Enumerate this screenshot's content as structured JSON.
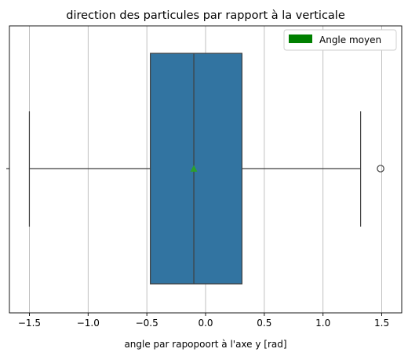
{
  "chart_data": {
    "type": "box",
    "title": "direction des particules par rapport à la verticale",
    "xlabel": "angle par rapopoort à l'axe y [rad]",
    "ylabel": "",
    "xlim": [
      -1.67,
      1.67
    ],
    "xticks": [
      -1.5,
      -1.0,
      -0.5,
      0.0,
      0.5,
      1.0,
      1.5
    ],
    "xtick_labels": [
      "−1.5",
      "−1.0",
      "−0.5",
      "0.0",
      "0.5",
      "1.0",
      "1.5"
    ],
    "grid": true,
    "legend": {
      "placement": "upper right",
      "entries": [
        {
          "label": "Angle moyen",
          "color": "#008000"
        }
      ]
    },
    "box": {
      "whisker_low": -1.5,
      "q1": -0.47,
      "median": -0.1,
      "q3": 0.31,
      "whisker_high": 1.32,
      "mean": -0.1,
      "outliers": [
        1.49
      ]
    },
    "colors": {
      "box": "#3274a1",
      "mean_marker": "#2ca02c",
      "lines": "#3f3f3f"
    }
  }
}
